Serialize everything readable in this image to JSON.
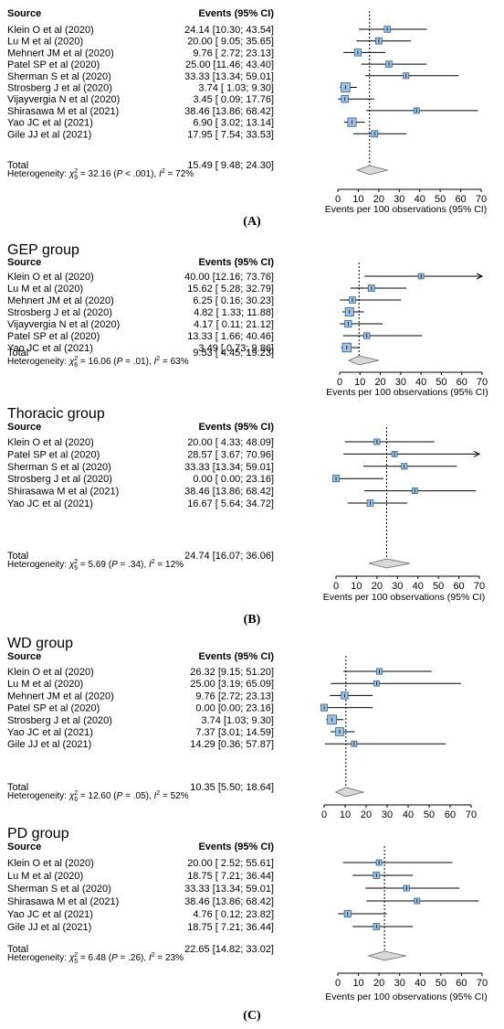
{
  "panel_labels": {
    "A": "(A)",
    "B": "(B)",
    "C": "(C)"
  },
  "chart_data": [
    {
      "type": "forest",
      "group_title": "",
      "col_source": "Source",
      "col_events": "Events (95% CI)",
      "xlabel": "Events per 100 observations (95% CI)",
      "xlim": [
        0,
        70
      ],
      "xticks": [
        0,
        10,
        20,
        30,
        40,
        50,
        60,
        70
      ],
      "reference_line": 15.49,
      "studies": [
        {
          "source": "Klein O et al (2020)",
          "events": "24.14 [10.30; 43.54]",
          "est": 24.14,
          "lo": 10.3,
          "hi": 43.54
        },
        {
          "source": "Lu M et al (2020)",
          "events": "20.00 [ 9.05; 35.65]",
          "est": 20.0,
          "lo": 9.05,
          "hi": 35.65
        },
        {
          "source": "Mehnert JM et al (2020)",
          "events": "9.76 [ 2.72; 23.13]",
          "est": 9.76,
          "lo": 2.72,
          "hi": 23.13
        },
        {
          "source": "Patel SP et al (2020)",
          "events": "25.00 [11.46; 43.40]",
          "est": 25.0,
          "lo": 11.46,
          "hi": 43.4
        },
        {
          "source": "Sherman S et al (2020)",
          "events": "33.33 [13.34; 59.01]",
          "est": 33.33,
          "lo": 13.34,
          "hi": 59.01
        },
        {
          "source": "Strosberg J et al (2020)",
          "events": "3.74 [ 1.03; 9.30]",
          "est": 3.74,
          "lo": 1.03,
          "hi": 9.3
        },
        {
          "source": "Vijayvergia N et al (2020)",
          "events": "3.45 [ 0.09; 17.76]",
          "est": 3.45,
          "lo": 0.09,
          "hi": 17.76
        },
        {
          "source": "Shirasawa M et al (2021)",
          "events": "38.46 [13.86; 68.42]",
          "est": 38.46,
          "lo": 13.86,
          "hi": 68.42
        },
        {
          "source": "Yao JC et al (2021)",
          "events": "6.90 [ 3.02; 13.14]",
          "est": 6.9,
          "lo": 3.02,
          "hi": 13.14
        },
        {
          "source": "Gile JJ et al (2021)",
          "events": "17.95 [ 7.54; 33.53]",
          "est": 17.95,
          "lo": 7.54,
          "hi": 33.53
        }
      ],
      "total": {
        "label": "Total",
        "events": "15.49 [ 9.48; 24.30]",
        "est": 15.49,
        "lo": 9.48,
        "hi": 24.3
      },
      "heterogeneity": {
        "prefix": "Heterogeneity: ",
        "chi": "χ",
        "df": "9",
        "rest": " = 32.16 (",
        "p": "P",
        "p_value": " < .001), ",
        "i": "I",
        "i_value": " = 72%"
      }
    },
    {
      "type": "forest",
      "group_title": "GEP group",
      "col_source": "Source",
      "col_events": "Events (95% CI)",
      "xlabel": "Events per 100 observations (95% CI)",
      "xlim": [
        0,
        70
      ],
      "xticks": [
        0,
        10,
        20,
        30,
        40,
        50,
        60,
        70
      ],
      "reference_line": 9.53,
      "studies": [
        {
          "source": "Klein O et al  (2020)",
          "events": "40.00 [12.16; 73.76]",
          "est": 40.0,
          "lo": 12.16,
          "hi": 73.76
        },
        {
          "source": "Lu M et al (2020)",
          "events": "15.62 [ 5.28; 32.79]",
          "est": 15.62,
          "lo": 5.28,
          "hi": 32.79
        },
        {
          "source": "Mehnert JM et al (2020)",
          "events": "6.25 [ 0.16; 30.23]",
          "est": 6.25,
          "lo": 0.16,
          "hi": 30.23
        },
        {
          "source": "Strosberg J et al (2020)",
          "events": "4.82 [ 1.33; 11.88]",
          "est": 4.82,
          "lo": 1.33,
          "hi": 11.88
        },
        {
          "source": "Vijayvergia N et al (2020)",
          "events": "4.17 [ 0.11; 21.12]",
          "est": 4.17,
          "lo": 0.11,
          "hi": 21.12
        },
        {
          "source": "Patel SP et al (2020)",
          "events": "13.33 [ 1.66; 40.46]",
          "est": 13.33,
          "lo": 1.66,
          "hi": 40.46
        },
        {
          "source": "Yao JC et al (2021)",
          "events": "3.49 [ 0.73; 9.86]",
          "est": 3.49,
          "lo": 0.73,
          "hi": 9.86
        }
      ],
      "total": {
        "label": "Total",
        "events": "9.53 [ 4.45; 19.23]",
        "est": 9.53,
        "lo": 4.45,
        "hi": 19.23
      },
      "heterogeneity": {
        "prefix": "Heterogeneity: ",
        "chi": "χ",
        "df": "6",
        "rest": " = 16.06 (",
        "p": "P",
        "p_value": " = .01), ",
        "i": "I",
        "i_value": " = 63%"
      }
    },
    {
      "type": "forest",
      "group_title": "Thoracic group",
      "col_source": "Source",
      "col_events": "Events (95% CI)",
      "xlabel": "Events per 100 observations (95% CI)",
      "xlim": [
        0,
        70
      ],
      "xticks": [
        0,
        10,
        20,
        30,
        40,
        50,
        60,
        70
      ],
      "reference_line": 24.74,
      "studies": [
        {
          "source": "Klein O et al (2020)",
          "events": "20.00 [ 4.33; 48.09]",
          "est": 20.0,
          "lo": 4.33,
          "hi": 48.09
        },
        {
          "source": "Patel SP et al (2020)",
          "events": "28.57 [ 3.67; 70.96]",
          "est": 28.57,
          "lo": 3.67,
          "hi": 70.96
        },
        {
          "source": "Sherman S et al (2020)",
          "events": "33.33 [13.34; 59.01]",
          "est": 33.33,
          "lo": 13.34,
          "hi": 59.01
        },
        {
          "source": "Strosberg J et al (2020)",
          "events": "0.00 [ 0.00; 23.16]",
          "est": 0.0,
          "lo": 0.0,
          "hi": 23.16
        },
        {
          "source": "Shirasawa M et al (2021)",
          "events": "38.46 [13.86; 68.42]",
          "est": 38.46,
          "lo": 13.86,
          "hi": 68.42
        },
        {
          "source": "Yao JC et al (2021)",
          "events": "16.67 [ 5.64; 34.72]",
          "est": 16.67,
          "lo": 5.64,
          "hi": 34.72
        }
      ],
      "total": {
        "label": "Total",
        "events": "24.74 [16.07; 36.06]",
        "est": 24.74,
        "lo": 16.07,
        "hi": 36.06
      },
      "heterogeneity": {
        "prefix": "Heterogeneity: ",
        "chi": "χ",
        "df": "5",
        "rest": " = 5.69 (",
        "p": "P",
        "p_value": " = .34), ",
        "i": "I",
        "i_value": " = 12%"
      }
    },
    {
      "type": "forest",
      "group_title": "WD group",
      "col_source": "Source",
      "col_events": "Events (95% CI)",
      "xlabel": "",
      "xlim": [
        0,
        70
      ],
      "xticks": [
        0,
        10,
        20,
        30,
        40,
        50,
        60,
        70
      ],
      "reference_line": 10.35,
      "studies": [
        {
          "source": "Klein O et al (2020)",
          "events": "26.32 [9.15; 51.20]",
          "est": 26.32,
          "lo": 9.15,
          "hi": 51.2
        },
        {
          "source": "Lu M et al (2020)",
          "events": "25.00 [3.19; 65.09]",
          "est": 25.0,
          "lo": 3.19,
          "hi": 65.09
        },
        {
          "source": "Mehnert JM et al (2020)",
          "events": "9.76 [2.72; 23.13]",
          "est": 9.76,
          "lo": 2.72,
          "hi": 23.13
        },
        {
          "source": "Patel SP et al (2020)",
          "events": "0.00 [0.00; 23.16]",
          "est": 0.0,
          "lo": 0.0,
          "hi": 23.16
        },
        {
          "source": "Strosberg J et al (2020)",
          "events": "3.74 [1.03; 9.30]",
          "est": 3.74,
          "lo": 1.03,
          "hi": 9.3
        },
        {
          "source": "Yao JC et al (2021)",
          "events": "7.37 [3.01; 14.59]",
          "est": 7.37,
          "lo": 3.01,
          "hi": 14.59
        },
        {
          "source": "Gile JJ et al (2021)",
          "events": "14.29 [0.36; 57.87]",
          "est": 14.29,
          "lo": 0.36,
          "hi": 57.87
        }
      ],
      "total": {
        "label": "Total",
        "events": "10.35 [5.50; 18.64]",
        "est": 10.35,
        "lo": 5.5,
        "hi": 18.64
      },
      "heterogeneity": {
        "prefix": "Heterogeneity: ",
        "chi": "χ",
        "df": "6",
        "rest": " = 12.60 (",
        "p": "P",
        "p_value": " = .05), ",
        "i": "I",
        "i_value": " = 52%"
      }
    },
    {
      "type": "forest",
      "group_title": "PD group",
      "col_source": "Source",
      "col_events": "Events (95% CI)",
      "xlabel": "Events per 100 observations (95% CI)",
      "xlim": [
        0,
        70
      ],
      "xticks": [
        0,
        10,
        20,
        30,
        40,
        50,
        60,
        70
      ],
      "reference_line": 22.65,
      "studies": [
        {
          "source": "Klein O et al (2020)",
          "events": "20.00 [ 2.52; 55.61]",
          "est": 20.0,
          "lo": 2.52,
          "hi": 55.61
        },
        {
          "source": "Lu M et al (2020)",
          "events": "18.75 [ 7.21; 36.44]",
          "est": 18.75,
          "lo": 7.21,
          "hi": 36.44
        },
        {
          "source": "Sherman S et al (2020)",
          "events": "33.33 [13.34; 59.01]",
          "est": 33.33,
          "lo": 13.34,
          "hi": 59.01
        },
        {
          "source": "Shirasawa M et al (2021)",
          "events": "38.46 [13.86; 68.42]",
          "est": 38.46,
          "lo": 13.86,
          "hi": 68.42
        },
        {
          "source": "Yao JC et al (2021)",
          "events": "4.76 [ 0.12; 23.82]",
          "est": 4.76,
          "lo": 0.12,
          "hi": 23.82
        },
        {
          "source": "Gile JJ et al (2021)",
          "events": "18.75 [ 7.21; 36.44]",
          "est": 18.75,
          "lo": 7.21,
          "hi": 36.44
        }
      ],
      "total": {
        "label": "Total",
        "events": "22.65 [14.82; 33.02]",
        "est": 22.65,
        "lo": 14.82,
        "hi": 33.02
      },
      "heterogeneity": {
        "prefix": "Heterogeneity: ",
        "chi": "χ",
        "df": "5",
        "rest": " = 6.48 (",
        "p": "P",
        "p_value": " = .26), ",
        "i": "I",
        "i_value": " = 23%"
      }
    }
  ],
  "colors": {
    "box_fill": "#9dc3e6",
    "box_stroke": "#2f5f8a",
    "diamond_fill": "#d9d9d9",
    "line": "#000000",
    "text": "#000000"
  }
}
